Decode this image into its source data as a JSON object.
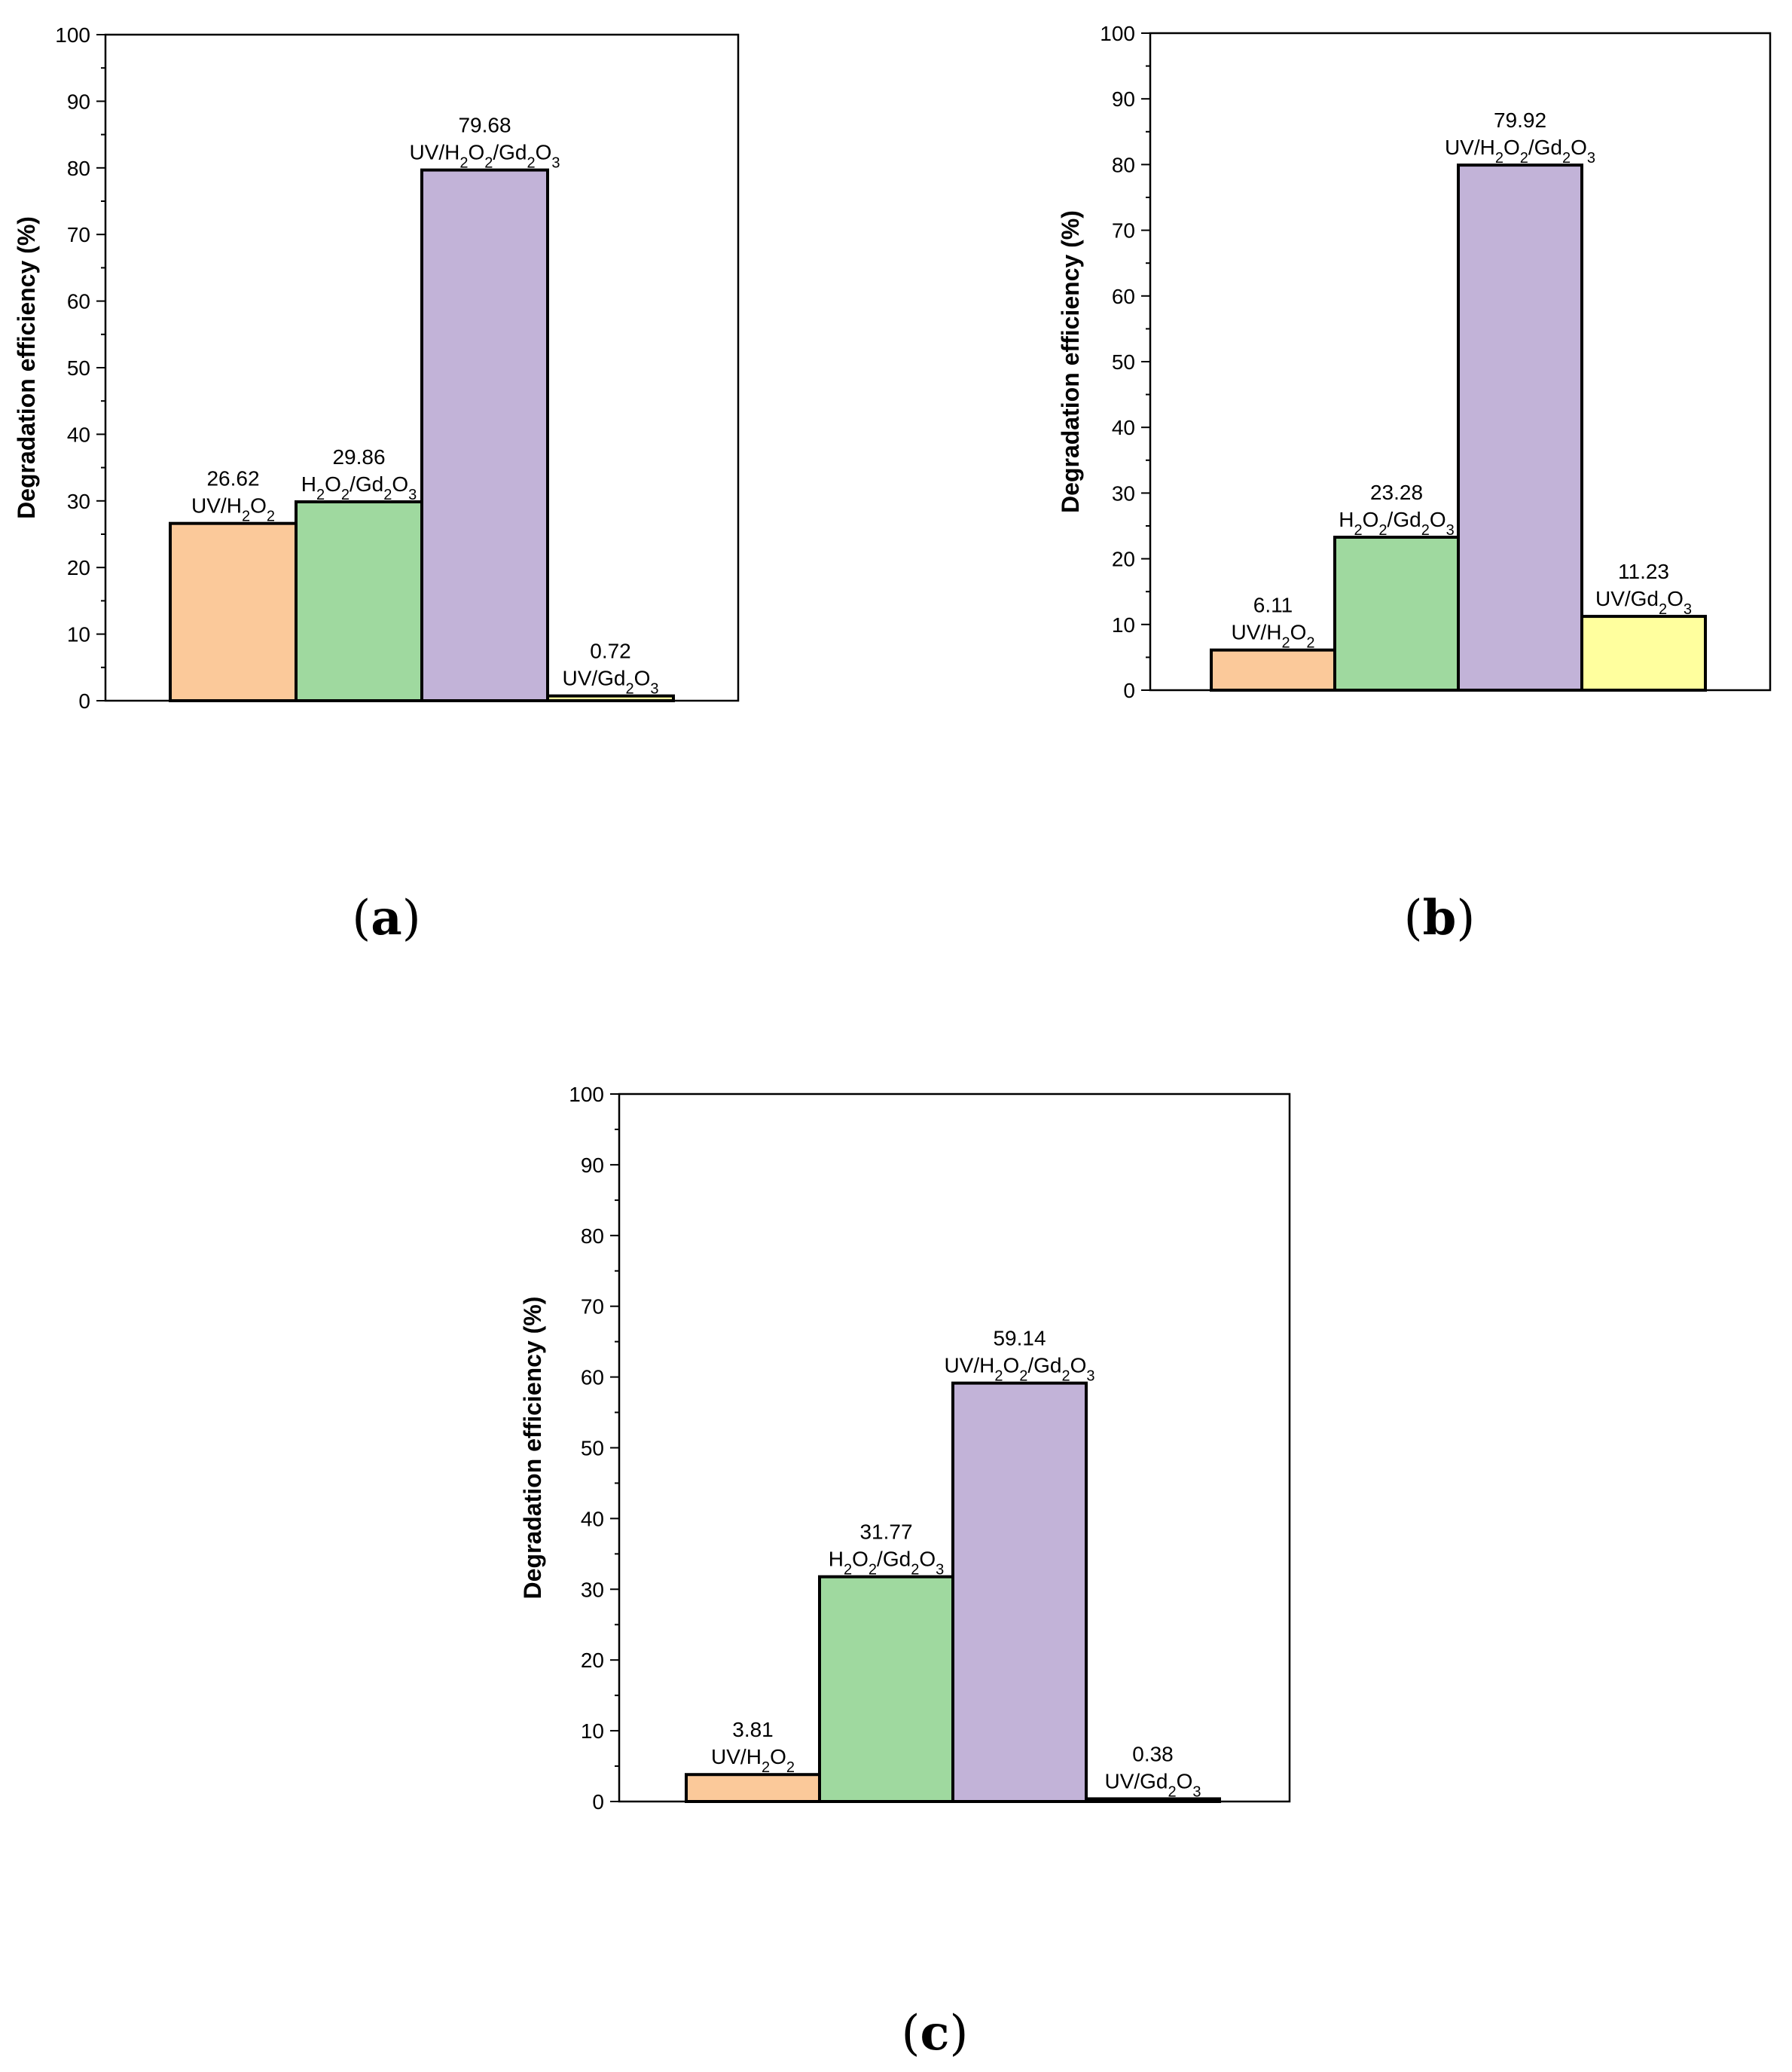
{
  "colors": {
    "UV/H2O2": "#fbc99a",
    "H2O2/Gd2O3": "#9fd99f",
    "UV/H2O2/Gd2O3": "#c2b3d8",
    "UV/Gd2O3": "#ffff9e"
  },
  "chart_data": [
    {
      "panel": "a",
      "type": "bar",
      "ylabel": "Degradation efficiency (%)",
      "ylim": [
        0,
        100
      ],
      "yticks": [
        0,
        10,
        20,
        30,
        40,
        50,
        60,
        70,
        80,
        90,
        100
      ],
      "bars": [
        {
          "key": "UV/H2O2",
          "value": 26.62,
          "value_label": "26.62",
          "label": "UV/H2O2"
        },
        {
          "key": "H2O2/Gd2O3",
          "value": 29.86,
          "value_label": "29.86",
          "label": "H2O2/Gd2O3"
        },
        {
          "key": "UV/H2O2/Gd2O3",
          "value": 79.68,
          "value_label": "79.68",
          "label": "UV/H2O2/Gd2O3"
        },
        {
          "key": "UV/Gd2O3",
          "value": 0.72,
          "value_label": "0.72",
          "label": "UV/Gd2O3"
        }
      ]
    },
    {
      "panel": "b",
      "type": "bar",
      "ylabel": "Degradation efficiency (%)",
      "ylim": [
        0,
        100
      ],
      "yticks": [
        0,
        10,
        20,
        30,
        40,
        50,
        60,
        70,
        80,
        90,
        100
      ],
      "bars": [
        {
          "key": "UV/H2O2",
          "value": 6.11,
          "value_label": "6.11",
          "label": "UV/H2O2"
        },
        {
          "key": "H2O2/Gd2O3",
          "value": 23.28,
          "value_label": "23.28",
          "label": "H2O2/Gd2O3"
        },
        {
          "key": "UV/H2O2/Gd2O3",
          "value": 79.92,
          "value_label": "79.92",
          "label": "UV/H2O2/Gd2O3"
        },
        {
          "key": "UV/Gd2O3",
          "value": 11.23,
          "value_label": "11.23",
          "label": "UV/Gd2O3"
        }
      ]
    },
    {
      "panel": "c",
      "type": "bar",
      "ylabel": "Degradation efficiency (%)",
      "ylim": [
        0,
        100
      ],
      "yticks": [
        0,
        10,
        20,
        30,
        40,
        50,
        60,
        70,
        80,
        90,
        100
      ],
      "bars": [
        {
          "key": "UV/H2O2",
          "value": 3.81,
          "value_label": "3.81",
          "label": "UV/H2O2"
        },
        {
          "key": "H2O2/Gd2O3",
          "value": 31.77,
          "value_label": "31.77",
          "label": "H2O2/Gd2O3"
        },
        {
          "key": "UV/H2O2/Gd2O3",
          "value": 59.14,
          "value_label": "59.14",
          "label": "UV/H2O2/Gd2O3"
        },
        {
          "key": "UV/Gd2O3",
          "value": 0.38,
          "value_label": "0.38",
          "label": "UV/Gd2O3"
        }
      ]
    }
  ],
  "panel_labels": [
    "(a)",
    "(b)",
    "(c)"
  ]
}
